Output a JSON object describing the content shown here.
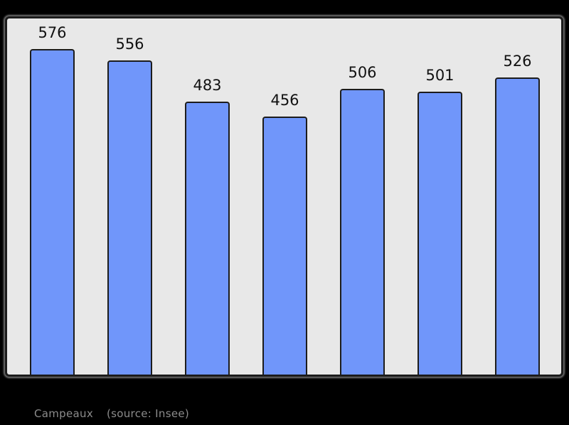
{
  "chart_data": {
    "type": "bar",
    "title": "",
    "xlabel": "",
    "ylabel": "",
    "categories": [
      "",
      "",
      "",
      "",
      "",
      "",
      ""
    ],
    "values": [
      576,
      556,
      483,
      456,
      506,
      501,
      526
    ],
    "bar_value_labels": [
      "576",
      "556",
      "483",
      "456",
      "506",
      "501",
      "526"
    ],
    "ylim": [
      0,
      576
    ],
    "grid": false,
    "legend": false,
    "axis_tick_labels_visible": false
  },
  "footer": {
    "place": "Campeaux",
    "source": "(source: Insee)"
  },
  "colors": {
    "page_background": "#000000",
    "plot_background": "#e8e8e8",
    "plot_border": "#1c1c1c",
    "bar_fill": "#7096fa",
    "bar_border": "#1c1c1c",
    "value_label": "#111111",
    "footer_text": "#8c8c8c"
  }
}
